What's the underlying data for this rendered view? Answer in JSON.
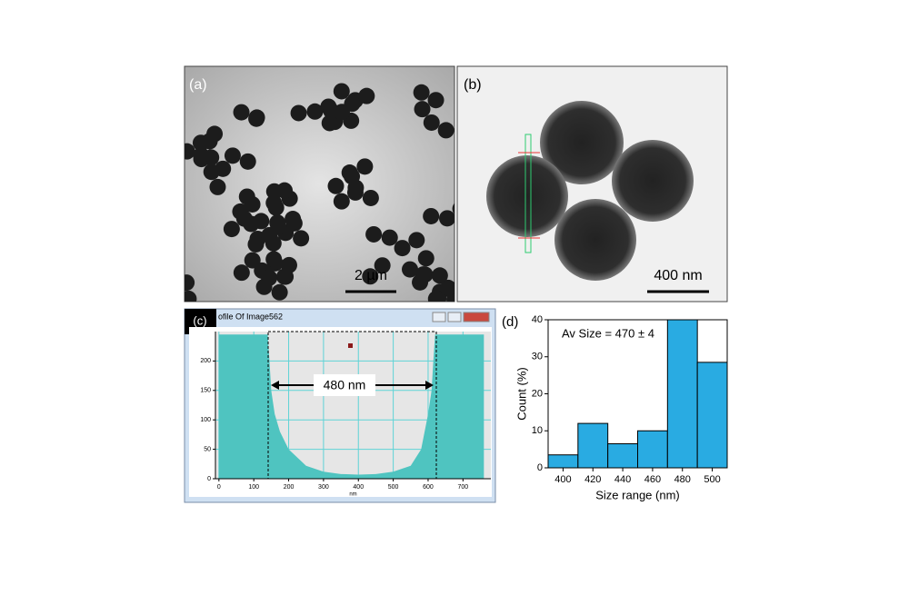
{
  "panels": [
    {
      "label": "(a)",
      "scale_bar": "2 µm"
    },
    {
      "label": "(b)",
      "scale_bar": "400 nm"
    }
  ],
  "chart_data": [
    {
      "type": "area",
      "label": "(c)",
      "window_title": "ofile Of Image562",
      "annotation": "480 nm",
      "x_label": "nm",
      "x": [
        0,
        140,
        145,
        150,
        160,
        175,
        200,
        250,
        300,
        350,
        400,
        450,
        500,
        550,
        580,
        600,
        610,
        615,
        620,
        760
      ],
      "values": [
        245,
        245,
        200,
        150,
        110,
        80,
        50,
        22,
        12,
        8,
        7,
        8,
        12,
        22,
        50,
        110,
        150,
        200,
        245,
        245
      ],
      "color": "#4fc4c0",
      "xlim": [
        -10,
        780
      ],
      "ylim": [
        0,
        250
      ],
      "xticks": [
        0,
        100,
        200,
        300,
        400,
        500,
        600,
        700
      ],
      "yticks": [
        0,
        50,
        100,
        150,
        200
      ],
      "grid": true
    },
    {
      "type": "histogram",
      "label": "(d)",
      "annotation": "Av Size = 470 ± 4",
      "x_label": "Size range (nm)",
      "y_label": "Count (%)",
      "bins": [
        390,
        410,
        430,
        450,
        470,
        490,
        510
      ],
      "values": [
        3.5,
        12,
        6.5,
        10,
        40,
        28.5
      ],
      "color": "#29abe2",
      "xlim": [
        390,
        510
      ],
      "ylim": [
        0,
        40
      ],
      "xticks": [
        400,
        420,
        440,
        460,
        480,
        500
      ],
      "yticks": [
        0,
        10,
        20,
        30,
        40
      ]
    }
  ]
}
